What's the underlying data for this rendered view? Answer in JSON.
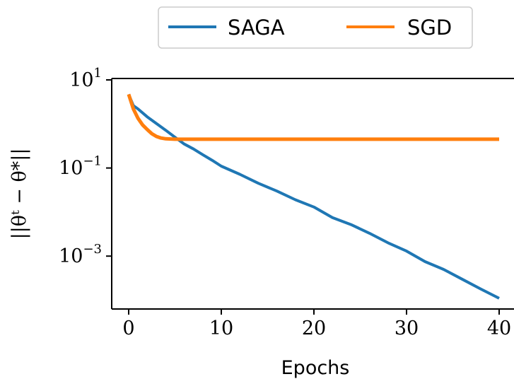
{
  "chart_data": {
    "type": "line",
    "xlabel": "Epochs",
    "ylabel": "||θᵗ − θ*||",
    "xlim": [
      -1.8,
      42
    ],
    "ylim_log10": [
      -4.2,
      1
    ],
    "y_scale": "log",
    "grid": false,
    "legend_placement": "top-center, outside",
    "x_ticks": [
      {
        "value": 0,
        "label": "0"
      },
      {
        "value": 10,
        "label": "10"
      },
      {
        "value": 20,
        "label": "20"
      },
      {
        "value": 30,
        "label": "30"
      },
      {
        "value": 40,
        "label": "40"
      }
    ],
    "y_ticks": [
      {
        "value": 10,
        "mantissa": "10",
        "exponent": "1"
      },
      {
        "value": 0.1,
        "mantissa": "10",
        "exponent": "−1"
      },
      {
        "value": 0.001,
        "mantissa": "10",
        "exponent": "−3"
      }
    ],
    "series": [
      {
        "name": "SAGA",
        "color": "#1f77b4",
        "x": [
          0,
          0.5,
          1,
          2,
          3,
          4,
          5,
          6,
          7,
          8,
          9,
          10,
          12,
          14,
          16,
          18,
          20,
          22,
          24,
          26,
          28,
          30,
          32,
          34,
          36,
          38,
          40
        ],
        "y": [
          4.7,
          2.6,
          2.2,
          1.45,
          1.02,
          0.72,
          0.5,
          0.35,
          0.27,
          0.2,
          0.15,
          0.11,
          0.072,
          0.045,
          0.03,
          0.019,
          0.013,
          0.0075,
          0.0052,
          0.0033,
          0.002,
          0.0013,
          0.00075,
          0.0005,
          0.0003,
          0.00018,
          0.00011
        ]
      },
      {
        "name": "SGD",
        "color": "#ff7f0e",
        "x": [
          0,
          0.5,
          1,
          1.5,
          2,
          2.5,
          3,
          3.5,
          4,
          5,
          6,
          8,
          10,
          15,
          20,
          25,
          30,
          35,
          40
        ],
        "y": [
          4.7,
          2.2,
          1.35,
          0.95,
          0.75,
          0.6,
          0.52,
          0.48,
          0.46,
          0.45,
          0.45,
          0.45,
          0.45,
          0.45,
          0.45,
          0.45,
          0.45,
          0.45,
          0.45
        ]
      }
    ]
  }
}
